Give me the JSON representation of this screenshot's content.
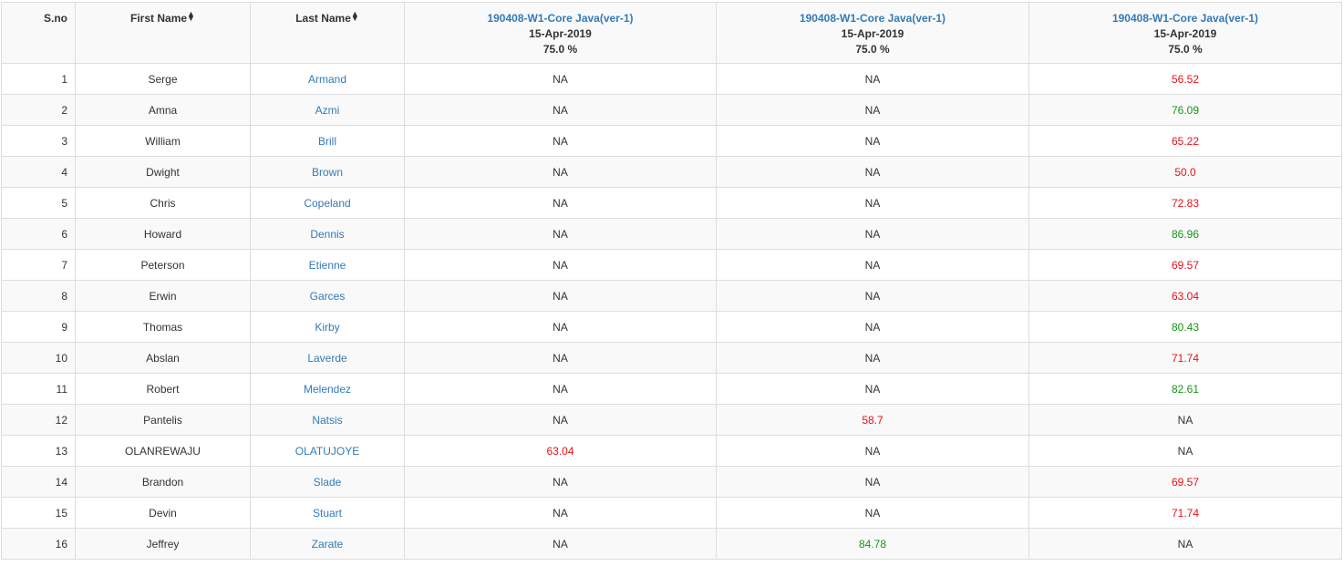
{
  "headers": {
    "sno": "S.no",
    "first_name": "First Name",
    "last_name": "Last Name",
    "sort_icon": "sort-icon",
    "assessments": [
      {
        "name": "190408-W1-Core Java(ver-1)",
        "date": "15-Apr-2019",
        "pct": "75.0 %"
      },
      {
        "name": "190408-W1-Core Java(ver-1)",
        "date": "15-Apr-2019",
        "pct": "75.0 %"
      },
      {
        "name": "190408-W1-Core Java(ver-1)",
        "date": "15-Apr-2019",
        "pct": "75.0 %"
      }
    ]
  },
  "colors": {
    "pass": "#17951a",
    "fail": "#e8111b",
    "link": "#337ab7"
  },
  "rows": [
    {
      "sno": "1",
      "first": "Serge",
      "last": "Armand",
      "scores": [
        {
          "v": "NA",
          "s": "na"
        },
        {
          "v": "NA",
          "s": "na"
        },
        {
          "v": "56.52",
          "s": "fail"
        }
      ]
    },
    {
      "sno": "2",
      "first": "Amna",
      "last": "Azmi",
      "scores": [
        {
          "v": "NA",
          "s": "na"
        },
        {
          "v": "NA",
          "s": "na"
        },
        {
          "v": "76.09",
          "s": "pass"
        }
      ]
    },
    {
      "sno": "3",
      "first": "William",
      "last": "Brill",
      "scores": [
        {
          "v": "NA",
          "s": "na"
        },
        {
          "v": "NA",
          "s": "na"
        },
        {
          "v": "65.22",
          "s": "fail"
        }
      ]
    },
    {
      "sno": "4",
      "first": "Dwight",
      "last": "Brown",
      "scores": [
        {
          "v": "NA",
          "s": "na"
        },
        {
          "v": "NA",
          "s": "na"
        },
        {
          "v": "50.0",
          "s": "fail"
        }
      ]
    },
    {
      "sno": "5",
      "first": "Chris",
      "last": "Copeland",
      "scores": [
        {
          "v": "NA",
          "s": "na"
        },
        {
          "v": "NA",
          "s": "na"
        },
        {
          "v": "72.83",
          "s": "fail"
        }
      ]
    },
    {
      "sno": "6",
      "first": "Howard",
      "last": "Dennis",
      "scores": [
        {
          "v": "NA",
          "s": "na"
        },
        {
          "v": "NA",
          "s": "na"
        },
        {
          "v": "86.96",
          "s": "pass"
        }
      ]
    },
    {
      "sno": "7",
      "first": "Peterson",
      "last": "Etienne",
      "scores": [
        {
          "v": "NA",
          "s": "na"
        },
        {
          "v": "NA",
          "s": "na"
        },
        {
          "v": "69.57",
          "s": "fail"
        }
      ]
    },
    {
      "sno": "8",
      "first": "Erwin",
      "last": "Garces",
      "scores": [
        {
          "v": "NA",
          "s": "na"
        },
        {
          "v": "NA",
          "s": "na"
        },
        {
          "v": "63.04",
          "s": "fail"
        }
      ]
    },
    {
      "sno": "9",
      "first": "Thomas",
      "last": "Kirby",
      "scores": [
        {
          "v": "NA",
          "s": "na"
        },
        {
          "v": "NA",
          "s": "na"
        },
        {
          "v": "80.43",
          "s": "pass"
        }
      ]
    },
    {
      "sno": "10",
      "first": "Abslan",
      "last": "Laverde",
      "scores": [
        {
          "v": "NA",
          "s": "na"
        },
        {
          "v": "NA",
          "s": "na"
        },
        {
          "v": "71.74",
          "s": "fail"
        }
      ]
    },
    {
      "sno": "11",
      "first": "Robert",
      "last": "Melendez",
      "scores": [
        {
          "v": "NA",
          "s": "na"
        },
        {
          "v": "NA",
          "s": "na"
        },
        {
          "v": "82.61",
          "s": "pass"
        }
      ]
    },
    {
      "sno": "12",
      "first": "Pantelis",
      "last": "Natsis",
      "scores": [
        {
          "v": "NA",
          "s": "na"
        },
        {
          "v": "58.7",
          "s": "fail"
        },
        {
          "v": "NA",
          "s": "na"
        }
      ]
    },
    {
      "sno": "13",
      "first": "OLANREWAJU",
      "last": "OLATUJOYE",
      "scores": [
        {
          "v": "63.04",
          "s": "fail"
        },
        {
          "v": "NA",
          "s": "na"
        },
        {
          "v": "NA",
          "s": "na"
        }
      ]
    },
    {
      "sno": "14",
      "first": "Brandon",
      "last": "Slade",
      "scores": [
        {
          "v": "NA",
          "s": "na"
        },
        {
          "v": "NA",
          "s": "na"
        },
        {
          "v": "69.57",
          "s": "fail"
        }
      ]
    },
    {
      "sno": "15",
      "first": "Devin",
      "last": "Stuart",
      "scores": [
        {
          "v": "NA",
          "s": "na"
        },
        {
          "v": "NA",
          "s": "na"
        },
        {
          "v": "71.74",
          "s": "fail"
        }
      ]
    },
    {
      "sno": "16",
      "first": "Jeffrey",
      "last": "Zarate",
      "scores": [
        {
          "v": "NA",
          "s": "na"
        },
        {
          "v": "84.78",
          "s": "pass"
        },
        {
          "v": "NA",
          "s": "na"
        }
      ]
    }
  ]
}
